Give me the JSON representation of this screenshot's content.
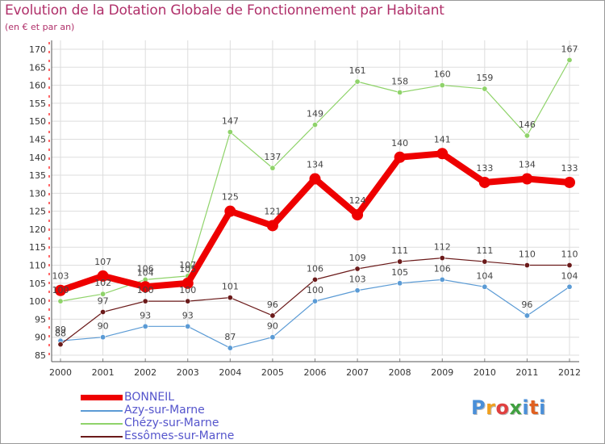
{
  "header": {
    "title": "Evolution de la Dotation Globale de Fonctionnement par Habitant",
    "subtitle": "(en € et par an)"
  },
  "colors": {
    "title": "#b0306a",
    "grid": "#dddddd",
    "axis_marks": "#ff0000",
    "legend_text": "#5555cc"
  },
  "chart_data": {
    "type": "line",
    "title": "Evolution de la Dotation Globale de Fonctionnement par Habitant",
    "subtitle": "(en € et par an)",
    "xlabel": "",
    "ylabel": "",
    "x": [
      "2000",
      "2001",
      "2002",
      "2003",
      "2004",
      "2005",
      "2006",
      "2007",
      "2008",
      "2009",
      "2010",
      "2011",
      "2012"
    ],
    "ylim": [
      85,
      170
    ],
    "yticks": [
      85,
      90,
      95,
      100,
      105,
      110,
      115,
      120,
      125,
      130,
      135,
      140,
      145,
      150,
      155,
      160,
      165,
      170
    ],
    "grid": true,
    "legend_position": "bottom-left",
    "series": [
      {
        "name": "BONNEIL",
        "color": "#ee0000",
        "values": [
          103,
          107,
          104,
          105,
          125,
          121,
          134,
          124,
          140,
          141,
          133,
          134,
          133
        ],
        "labels": [
          "103",
          "107",
          "104",
          "105",
          "125",
          "121",
          "134",
          "124",
          "140",
          "141",
          "133",
          "134",
          "133"
        ]
      },
      {
        "name": "Azy-sur-Marne",
        "color": "#5b9bd5",
        "values": [
          89,
          90,
          93,
          93,
          87,
          90,
          100,
          103,
          105,
          106,
          104,
          96,
          104
        ],
        "labels": [
          "89",
          "90",
          "93",
          "93",
          "87",
          "90",
          "100",
          "103",
          "105",
          "106",
          "104",
          "96",
          "104"
        ]
      },
      {
        "name": "Chézy-sur-Marne",
        "color": "#8fd36a",
        "values": [
          100,
          102,
          106,
          107,
          147,
          137,
          149,
          161,
          158,
          160,
          159,
          146,
          167
        ],
        "labels": [
          "100",
          "102",
          "106",
          "107",
          "147",
          "137",
          "149",
          "161",
          "158",
          "160",
          "159",
          "146",
          "167"
        ]
      },
      {
        "name": "Essômes-sur-Marne",
        "color": "#6b1a1a",
        "values": [
          88,
          97,
          100,
          100,
          101,
          96,
          106,
          109,
          111,
          112,
          111,
          110,
          110
        ],
        "labels": [
          "88",
          "97",
          "100",
          "100",
          "101",
          "96",
          "106",
          "109",
          "111",
          "112",
          "111",
          "110",
          "110"
        ]
      }
    ]
  },
  "logo": {
    "letters": [
      "P",
      "r",
      "o",
      "x",
      "i",
      "t",
      "i"
    ],
    "colors": [
      "#4a8fd8",
      "#f0a020",
      "#e04040",
      "#40a040",
      "#4a8fd8",
      "#e06020",
      "#4a8fd8"
    ]
  }
}
